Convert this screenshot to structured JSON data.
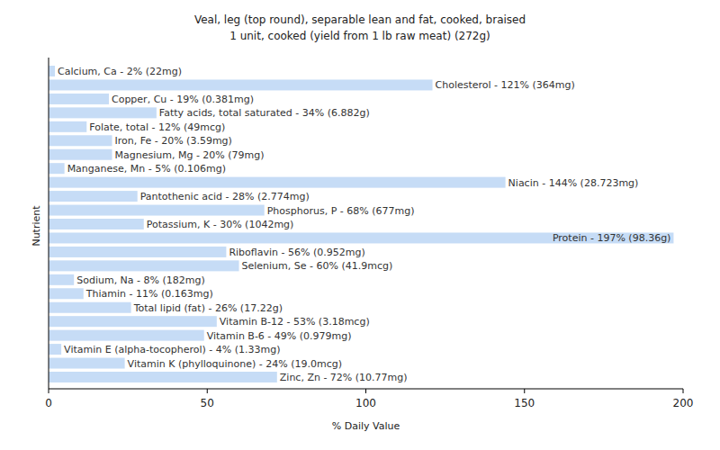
{
  "chart_data": {
    "type": "bar",
    "orientation": "horizontal",
    "title": "Veal, leg (top round), separable lean and fat, cooked, braised",
    "subtitle": "1 unit, cooked (yield from 1 lb raw meat) (272g)",
    "x_label": "% Daily Value",
    "y_label": "Nutrient",
    "categories": [
      null,
      null,
      null,
      null,
      null,
      null,
      null,
      null,
      null,
      null,
      null,
      null,
      null,
      null,
      null,
      null,
      null,
      null,
      null,
      null,
      null,
      null,
      null
    ],
    "values": [
      2,
      121,
      19,
      34,
      12,
      20,
      20,
      5,
      144,
      28,
      68,
      30,
      197,
      56,
      60,
      8,
      11,
      26,
      53,
      49,
      4,
      24,
      72
    ],
    "value_labels": [
      "Calcium, Ca - 2% (22mg)",
      "Cholesterol - 121% (364mg)",
      "Copper, Cu - 19% (0.381mg)",
      "Fatty acids, total saturated - 34% (6.882g)",
      "Folate, total - 12% (49mcg)",
      "Iron, Fe - 20% (3.59mg)",
      "Magnesium, Mg - 20% (79mg)",
      "Manganese, Mn - 5% (0.106mg)",
      "Niacin - 144% (28.723mg)",
      "Pantothenic acid - 28% (2.774mg)",
      "Phosphorus, P - 68% (677mg)",
      "Potassium, K - 30% (1042mg)",
      "Protein - 197% (98.36g)",
      "Riboflavin - 56% (0.952mg)",
      "Selenium, Se - 60% (41.9mcg)",
      "Sodium, Na - 8% (182mg)",
      "Thiamin - 11% (0.163mg)",
      "Total lipid (fat) - 26% (17.22g)",
      "Vitamin B-12 - 53% (3.18mcg)",
      "Vitamin B-6 - 49% (0.979mg)",
      "Vitamin E (alpha-tocopherol) - 4% (1.33mg)",
      "Vitamin K (phylloquinone) - 24% (19.0mcg)",
      "Zinc, Zn - 72% (10.77mg)"
    ],
    "data_labels": true,
    "color": "#c6dcf6",
    "xlim": [
      0,
      200
    ],
    "xticks": [
      0,
      50,
      100,
      150,
      200
    ],
    "grid": false
  }
}
